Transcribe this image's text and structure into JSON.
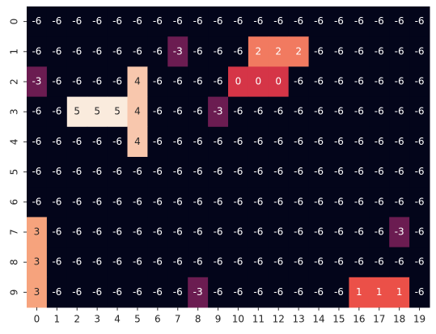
{
  "chart_data": {
    "type": "heatmap",
    "x": [
      0,
      1,
      2,
      3,
      4,
      5,
      6,
      7,
      8,
      9,
      10,
      11,
      12,
      13,
      14,
      15,
      16,
      17,
      18,
      19
    ],
    "y": [
      0,
      1,
      2,
      3,
      4,
      5,
      6,
      7,
      8,
      9
    ],
    "values": [
      [
        -6,
        -6,
        -6,
        -6,
        -6,
        -6,
        -6,
        -6,
        -6,
        -6,
        -6,
        -6,
        -6,
        -6,
        -6,
        -6,
        -6,
        -6,
        -6,
        -6
      ],
      [
        -6,
        -6,
        -6,
        -6,
        -6,
        -6,
        -6,
        -3,
        -6,
        -6,
        -6,
        2,
        2,
        2,
        -6,
        -6,
        -6,
        -6,
        -6,
        -6
      ],
      [
        -3,
        -6,
        -6,
        -6,
        -6,
        4,
        -6,
        -6,
        -6,
        -6,
        0,
        0,
        0,
        -6,
        -6,
        -6,
        -6,
        -6,
        -6,
        -6
      ],
      [
        -6,
        -6,
        5,
        5,
        5,
        4,
        -6,
        -6,
        -6,
        -3,
        -6,
        -6,
        -6,
        -6,
        -6,
        -6,
        -6,
        -6,
        -6,
        -6
      ],
      [
        -6,
        -6,
        -6,
        -6,
        -6,
        4,
        -6,
        -6,
        -6,
        -6,
        -6,
        -6,
        -6,
        -6,
        -6,
        -6,
        -6,
        -6,
        -6,
        -6
      ],
      [
        -6,
        -6,
        -6,
        -6,
        -6,
        -6,
        -6,
        -6,
        -6,
        -6,
        -6,
        -6,
        -6,
        -6,
        -6,
        -6,
        -6,
        -6,
        -6,
        -6
      ],
      [
        -6,
        -6,
        -6,
        -6,
        -6,
        -6,
        -6,
        -6,
        -6,
        -6,
        -6,
        -6,
        -6,
        -6,
        -6,
        -6,
        -6,
        -6,
        -6,
        -6
      ],
      [
        3,
        -6,
        -6,
        -6,
        -6,
        -6,
        -6,
        -6,
        -6,
        -6,
        -6,
        -6,
        -6,
        -6,
        -6,
        -6,
        -6,
        -6,
        -3,
        -6
      ],
      [
        3,
        -6,
        -6,
        -6,
        -6,
        -6,
        -6,
        -6,
        -6,
        -6,
        -6,
        -6,
        -6,
        -6,
        -6,
        -6,
        -6,
        -6,
        -6,
        -6
      ],
      [
        3,
        -6,
        -6,
        -6,
        -6,
        -6,
        -6,
        -6,
        -3,
        -6,
        -6,
        -6,
        -6,
        -6,
        -6,
        -6,
        1,
        1,
        1,
        -6
      ]
    ],
    "zlim": [
      -6,
      5
    ],
    "colormap": [
      "#03051a",
      "#4c1d4b",
      "#a11a5b",
      "#e83f3f",
      "#f69c73",
      "#faebdd"
    ]
  }
}
